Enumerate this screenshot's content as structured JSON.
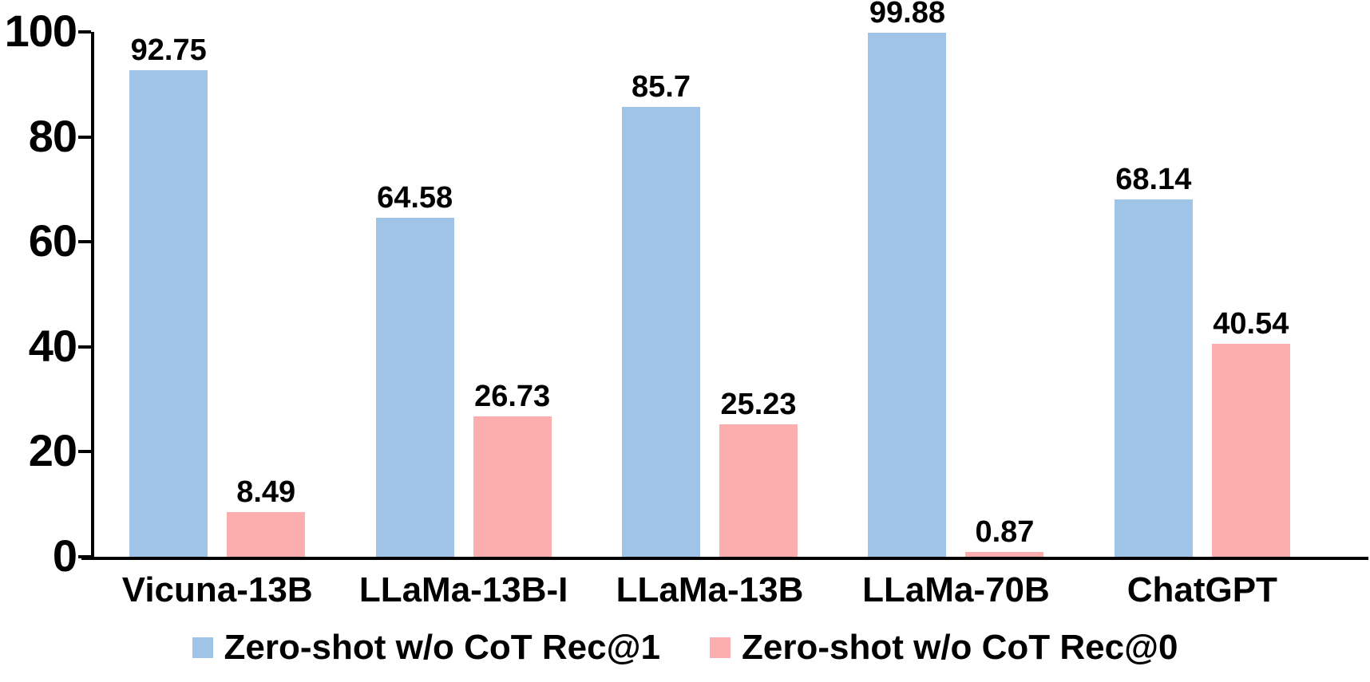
{
  "chart_data": {
    "type": "bar",
    "categories": [
      "Vicuna-13B",
      "LLaMa-13B-I",
      "LLaMa-13B",
      "LLaMa-70B",
      "ChatGPT"
    ],
    "series": [
      {
        "name": "Zero-shot w/o CoT Rec@1",
        "color": "#A0C4E8",
        "values": [
          92.75,
          64.58,
          85.7,
          99.88,
          68.14
        ],
        "value_labels": [
          "92.75",
          "64.58",
          "85.7",
          "99.88",
          "68.14"
        ]
      },
      {
        "name": "Zero-shot w/o CoT Rec@0",
        "color": "#FCAEAE",
        "values": [
          8.49,
          26.73,
          25.23,
          0.87,
          40.54
        ],
        "value_labels": [
          "8.49",
          "26.73",
          "25.23",
          "0.87",
          "40.54"
        ]
      }
    ],
    "title": "",
    "xlabel": "",
    "ylabel": "",
    "ylim": [
      0,
      100
    ],
    "yticks": [
      0,
      20,
      40,
      60,
      80,
      100
    ],
    "ytick_labels": [
      "0",
      "20",
      "40",
      "60",
      "80",
      "100"
    ],
    "grid": false,
    "legend_position": "bottom",
    "axis_color": "#000000",
    "text_color": "#000000",
    "background_color": "#ffffff"
  }
}
